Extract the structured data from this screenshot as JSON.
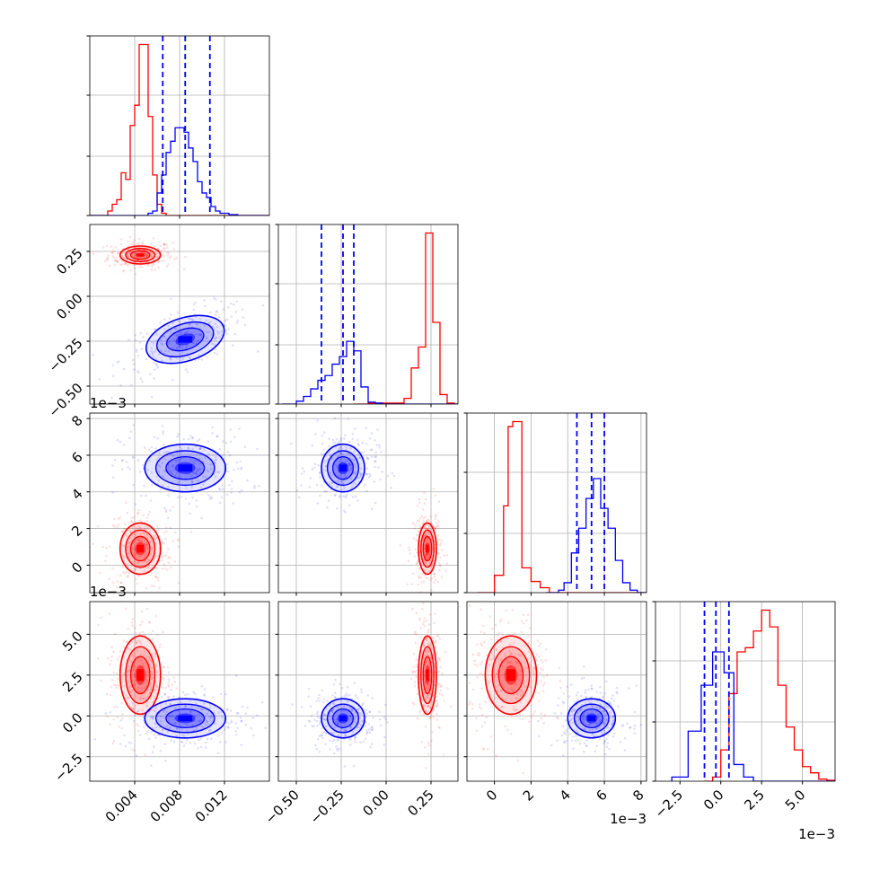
{
  "chart_data": {
    "type": "corner",
    "grid": true,
    "parameters": [
      {
        "ticks": [
          0.004,
          0.008,
          0.012
        ],
        "tick_labels": [
          "0.004",
          "0.008",
          "0.012"
        ],
        "range": [
          0.0,
          0.016
        ],
        "offset": ""
      },
      {
        "ticks": [
          -0.5,
          -0.25,
          0.0,
          0.25
        ],
        "tick_labels": [
          "−0.50",
          "−0.25",
          "0.00",
          "0.25"
        ],
        "range": [
          -0.6,
          0.4
        ],
        "offset": ""
      },
      {
        "ticks": [
          0,
          2,
          4,
          6,
          8
        ],
        "tick_labels": [
          "0",
          "2",
          "4",
          "6",
          "8"
        ],
        "range": [
          -1.5,
          8.3
        ],
        "offset": "1e−3"
      },
      {
        "ticks": [
          -2.5,
          0.0,
          2.5,
          5.0
        ],
        "tick_labels": [
          "−2.5",
          "0.0",
          "2.5",
          "5.0"
        ],
        "range": [
          -4.0,
          7.0
        ],
        "offset": "1e−3"
      }
    ],
    "series": [
      {
        "color": "#ff0000",
        "means": [
          0.0045,
          0.23,
          0.9,
          2.5
        ],
        "sds": [
          0.0009,
          0.025,
          0.7,
          1.2
        ],
        "hist": [
          [
            [
              0.0,
              0.0
            ],
            [
              0.0012,
              0.0
            ],
            [
              0.0016,
              0.1
            ],
            [
              0.002,
              0.25
            ],
            [
              0.0024,
              0.35
            ],
            [
              0.0028,
              0.95
            ],
            [
              0.0032,
              0.8
            ],
            [
              0.0036,
              2.0
            ],
            [
              0.004,
              2.45
            ],
            [
              0.0044,
              3.8
            ],
            [
              0.0048,
              3.8
            ],
            [
              0.0052,
              2.2
            ],
            [
              0.0056,
              0.9
            ],
            [
              0.006,
              0.25
            ],
            [
              0.0064,
              0.05
            ],
            [
              0.0068,
              0.0
            ]
          ],
          [
            [
              -0.18,
              0.0
            ],
            [
              -0.1,
              0.05
            ],
            [
              0.1,
              0.3
            ],
            [
              0.14,
              1.9
            ],
            [
              0.18,
              3.0
            ],
            [
              0.22,
              9.0
            ],
            [
              0.26,
              4.3
            ],
            [
              0.3,
              0.5
            ],
            [
              0.34,
              0.05
            ],
            [
              0.38,
              0.0
            ]
          ],
          [
            [
              -0.9,
              0.0
            ],
            [
              -0.5,
              0.0
            ],
            [
              0.0,
              0.7
            ],
            [
              0.5,
              3.5
            ],
            [
              0.75,
              6.7
            ],
            [
              1.0,
              6.9
            ],
            [
              1.5,
              1.0
            ],
            [
              2.0,
              0.45
            ],
            [
              2.5,
              0.2
            ],
            [
              3.0,
              0.0
            ]
          ],
          [
            [
              -1.0,
              0.0
            ],
            [
              -0.5,
              0.1
            ],
            [
              0.0,
              0.75
            ],
            [
              0.5,
              2.1
            ],
            [
              1.0,
              3.1
            ],
            [
              1.5,
              3.2
            ],
            [
              2.0,
              3.6
            ],
            [
              2.5,
              4.1
            ],
            [
              3.0,
              3.7
            ],
            [
              3.5,
              2.3
            ],
            [
              4.0,
              1.3
            ],
            [
              4.5,
              0.75
            ],
            [
              5.0,
              0.35
            ],
            [
              5.5,
              0.2
            ],
            [
              6.0,
              0.05
            ],
            [
              6.5,
              0.02
            ],
            [
              7.0,
              0.0
            ]
          ]
        ]
      },
      {
        "color": "#0000ff",
        "means": [
          0.0085,
          -0.24,
          5.3,
          -0.15
        ],
        "sds": [
          0.0018,
          0.06,
          0.65,
          0.6
        ],
        "hist": [
          [
            [
              0.0,
              0.0
            ],
            [
              0.0052,
              0.05
            ],
            [
              0.0056,
              0.1
            ],
            [
              0.006,
              0.5
            ],
            [
              0.0064,
              0.9
            ],
            [
              0.0068,
              1.4
            ],
            [
              0.0072,
              1.65
            ],
            [
              0.0076,
              1.95
            ],
            [
              0.008,
              1.95
            ],
            [
              0.0084,
              1.85
            ],
            [
              0.0088,
              1.5
            ],
            [
              0.0092,
              1.2
            ],
            [
              0.0096,
              0.75
            ],
            [
              0.01,
              0.5
            ],
            [
              0.0104,
              0.4
            ],
            [
              0.0108,
              0.2
            ],
            [
              0.0112,
              0.1
            ],
            [
              0.0116,
              0.05
            ],
            [
              0.0124,
              0.02
            ],
            [
              0.0132,
              0.0
            ]
          ],
          [
            [
              -0.58,
              0.0
            ],
            [
              -0.5,
              0.15
            ],
            [
              -0.46,
              0.4
            ],
            [
              -0.42,
              0.8
            ],
            [
              -0.38,
              1.25
            ],
            [
              -0.34,
              1.5
            ],
            [
              -0.3,
              2.1
            ],
            [
              -0.26,
              2.5
            ],
            [
              -0.22,
              3.3
            ],
            [
              -0.18,
              2.8
            ],
            [
              -0.14,
              0.9
            ],
            [
              -0.1,
              0.1
            ],
            [
              -0.06,
              0.05
            ],
            [
              -0.02,
              0.0
            ]
          ],
          [
            [
              2.8,
              0.0
            ],
            [
              3.5,
              0.1
            ],
            [
              3.8,
              0.4
            ],
            [
              4.2,
              1.6
            ],
            [
              4.6,
              2.6
            ],
            [
              5.0,
              3.8
            ],
            [
              5.4,
              4.6
            ],
            [
              5.8,
              3.4
            ],
            [
              6.2,
              2.6
            ],
            [
              6.6,
              1.3
            ],
            [
              7.0,
              0.4
            ],
            [
              7.4,
              0.1
            ],
            [
              7.8,
              0.0
            ]
          ],
          [
            [
              -3.0,
              0.1
            ],
            [
              -2.0,
              1.2
            ],
            [
              -1.2,
              2.3
            ],
            [
              -0.5,
              3.1
            ],
            [
              0.2,
              2.6
            ],
            [
              0.8,
              0.4
            ],
            [
              1.4,
              0.1
            ],
            [
              2.0,
              0.0
            ]
          ]
        ],
        "quantiles": [
          [
            0.0065,
            0.0085,
            0.0107
          ],
          [
            -0.36,
            -0.24,
            -0.18
          ],
          [
            4.5,
            5.3,
            6.0
          ],
          [
            -1.0,
            -0.3,
            0.5
          ]
        ]
      }
    ]
  }
}
